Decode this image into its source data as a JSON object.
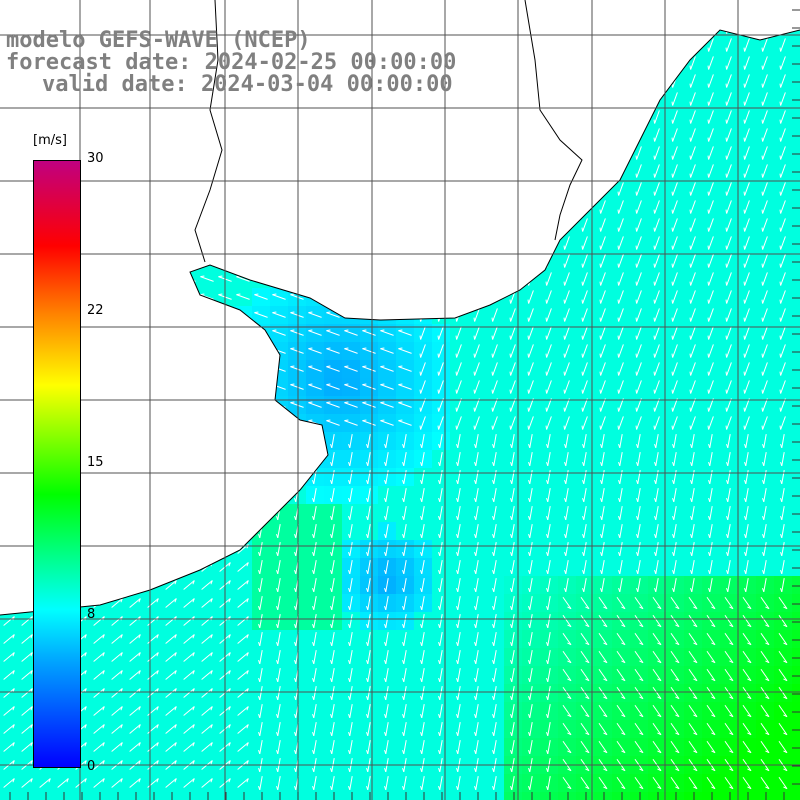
{
  "header": {
    "line1": "modelo GEFS-WAVE (NCEP)",
    "line2": "forecast date: 2024-02-25 00:00:00",
    "line3": "valid date: 2024-03-04 00:00:00"
  },
  "colorbar": {
    "unit": "[m/s]",
    "ticks": [
      "30",
      "22",
      "15",
      "8",
      "0"
    ],
    "colors": [
      "#0000ff",
      "#00a0ff",
      "#00ffff",
      "#00ff00",
      "#ffff00",
      "#ff8000",
      "#ff0000",
      "#c00080"
    ]
  },
  "map": {
    "variable": "wind speed",
    "grid": true,
    "vectors": "white arrows",
    "land_color": "#ffffff",
    "coast_color": "#000000"
  }
}
